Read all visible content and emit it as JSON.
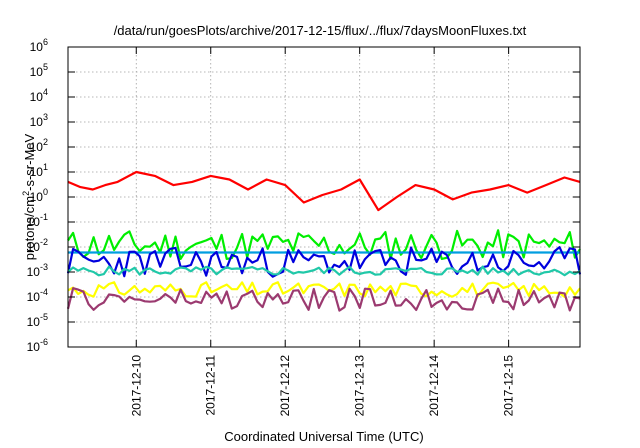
{
  "chart_data": {
    "type": "line",
    "title": "/data/run/goesPlots/archive/2017-12-15/flux/../flux/7daysMoonFluxes.txt",
    "xlabel": "Coordinated Universal Time (UTC)",
    "ylabel": "protons/cm²-s-sr-MeV",
    "y_scale": "log",
    "ylim": [
      1e-06,
      1000000.0
    ],
    "xlim": [
      "2017-12-09T02:00",
      "2017-12-15T23:00"
    ],
    "x_ticks": [
      "2017-12-10",
      "2017-12-11",
      "2017-12-12",
      "2017-12-13",
      "2017-12-14",
      "2017-12-15"
    ],
    "y_ticks": [
      {
        "base": "10",
        "exp": "-6"
      },
      {
        "base": "10",
        "exp": "-5"
      },
      {
        "base": "10",
        "exp": "-4"
      },
      {
        "base": "10",
        "exp": "-3"
      },
      {
        "base": "10",
        "exp": "-2"
      },
      {
        "base": "10",
        "exp": "-1"
      },
      {
        "base": "10",
        "exp": "0"
      },
      {
        "base": "10",
        "exp": "1"
      },
      {
        "base": "10",
        "exp": "2"
      },
      {
        "base": "10",
        "exp": "3"
      },
      {
        "base": "10",
        "exp": "4"
      },
      {
        "base": "10",
        "exp": "5"
      },
      {
        "base": "10",
        "exp": "6"
      }
    ],
    "grid": true,
    "legend": "none",
    "series": [
      {
        "color": "#ff0000",
        "style": "smooth",
        "points": [
          [
            "2017-12-09T02:00",
            4
          ],
          [
            "2017-12-09T06:00",
            2.5
          ],
          [
            "2017-12-09T10:00",
            2
          ],
          [
            "2017-12-09T14:00",
            3
          ],
          [
            "2017-12-09T18:00",
            4
          ],
          [
            "2017-12-10T00:00",
            10
          ],
          [
            "2017-12-10T06:00",
            7
          ],
          [
            "2017-12-10T12:00",
            3
          ],
          [
            "2017-12-10T18:00",
            4
          ],
          [
            "2017-12-11T00:00",
            7
          ],
          [
            "2017-12-11T06:00",
            5
          ],
          [
            "2017-12-11T12:00",
            2
          ],
          [
            "2017-12-11T18:00",
            5
          ],
          [
            "2017-12-12T00:00",
            3
          ],
          [
            "2017-12-12T06:00",
            0.6
          ],
          [
            "2017-12-12T12:00",
            1.2
          ],
          [
            "2017-12-12T18:00",
            2
          ],
          [
            "2017-12-13T00:00",
            5
          ],
          [
            "2017-12-13T06:00",
            0.3
          ],
          [
            "2017-12-13T12:00",
            1
          ],
          [
            "2017-12-13T18:00",
            3
          ],
          [
            "2017-12-14T00:00",
            2
          ],
          [
            "2017-12-14T06:00",
            0.8
          ],
          [
            "2017-12-14T12:00",
            1.5
          ],
          [
            "2017-12-14T18:00",
            2
          ],
          [
            "2017-12-15T00:00",
            3
          ],
          [
            "2017-12-15T06:00",
            1.5
          ],
          [
            "2017-12-15T12:00",
            3
          ],
          [
            "2017-12-15T18:00",
            6
          ],
          [
            "2017-12-15T23:00",
            4
          ]
        ]
      },
      {
        "color": "#00ee00",
        "style": "spiky",
        "base": 0.012,
        "spread": 0.6,
        "seed": 11,
        "steps": 100
      },
      {
        "color": "#009ee0",
        "style": "flat",
        "level": 0.006
      },
      {
        "color": "#0000dd",
        "style": "spiky",
        "base": 0.0025,
        "spread": 0.6,
        "seed": 23,
        "steps": 100
      },
      {
        "color": "#20c8a8",
        "style": "spiky",
        "base": 0.0011,
        "spread": 0.18,
        "seed": 5,
        "steps": 100
      },
      {
        "color": "#ffff00",
        "style": "spiky",
        "base": 0.0002,
        "spread": 0.3,
        "seed": 31,
        "steps": 100
      },
      {
        "color": "#9b3a70",
        "style": "spiky",
        "base": 8e-05,
        "spread": 0.45,
        "seed": 47,
        "steps": 100
      }
    ]
  }
}
